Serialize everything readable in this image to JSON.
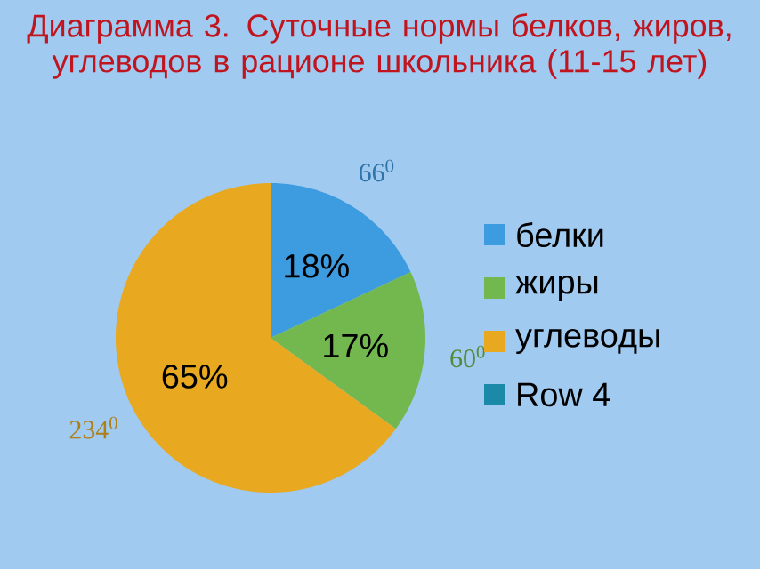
{
  "chart_data": {
    "type": "pie",
    "title": "Диаграмма 3. Суточные нормы белков, жиров, углеводов в рационе школьника (11-15 лет)",
    "categories": [
      "белки",
      "жиры",
      "углеводы",
      "Row 4"
    ],
    "values": [
      18,
      17,
      65,
      null
    ],
    "colors": [
      "#3d9be0",
      "#72b84e",
      "#e8a820",
      "#1a8aa8"
    ],
    "value_labels": [
      "18%",
      "17%",
      "65%",
      null
    ],
    "annotations": [
      "66$^{0}$",
      "60$^{0}$",
      "234$^{0}$"
    ],
    "legend": "right"
  }
}
